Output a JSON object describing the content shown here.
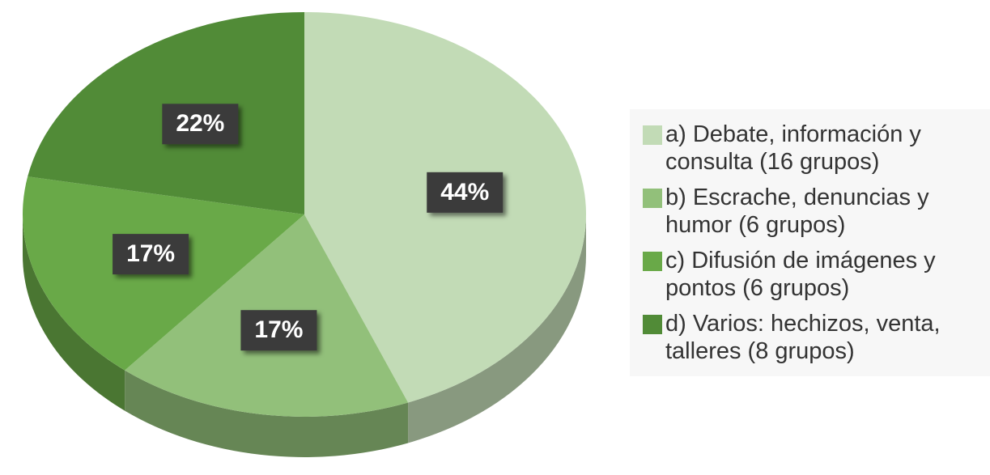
{
  "chart_data": {
    "type": "pie",
    "labels": [
      "a) Debate, información y consulta (16 grupos)",
      "b) Escrache, denuncias y humor (6 grupos)",
      "c) Difusión de imágenes y pontos (6 grupos)",
      "d) Varios: hechizos, venta, talleres (8 grupos)"
    ],
    "values": [
      44,
      17,
      17,
      22
    ],
    "value_labels": [
      "44%",
      "17%",
      "17%",
      "22%"
    ],
    "colors": [
      "#c2dbb6",
      "#92c07a",
      "#69a948",
      "#518b37"
    ]
  }
}
